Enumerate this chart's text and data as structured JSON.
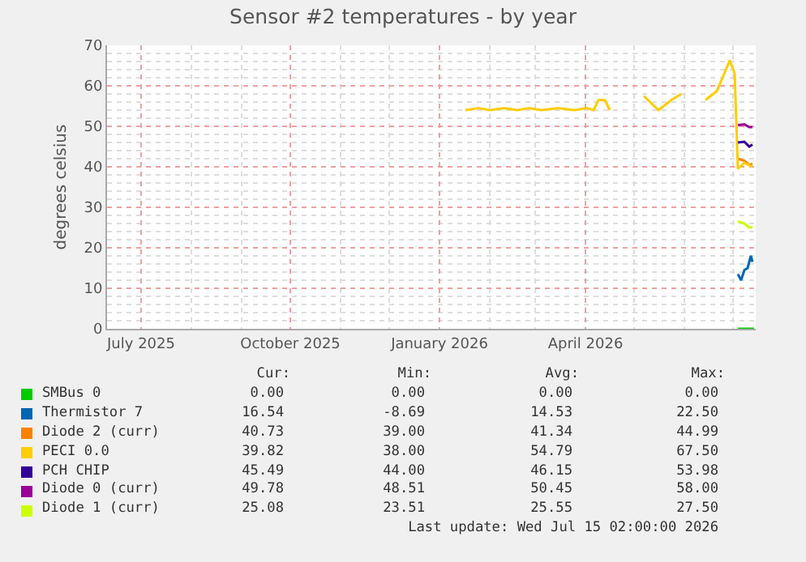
{
  "chart_data": {
    "type": "line",
    "title": "Sensor #2 temperatures - by year",
    "ylabel": "degrees celsius",
    "xlim": [
      "2025-06-10",
      "2026-07-15"
    ],
    "xticks": [
      {
        "value": "2025-07-01",
        "label": "July 2025"
      },
      {
        "value": "2025-10-01",
        "label": "October 2025"
      },
      {
        "value": "2026-01-01",
        "label": "January 2026"
      },
      {
        "value": "2026-04-01",
        "label": "April 2026"
      }
    ],
    "ylim": [
      0,
      70
    ],
    "yticks": [
      0,
      10,
      20,
      30,
      40,
      50,
      60,
      70
    ],
    "grid": true,
    "legend": "bottom",
    "series": [
      {
        "name": "SMBus 0",
        "color": "#00cc00",
        "x": [
          "2026-07-04",
          "2026-07-14"
        ],
        "values": [
          0,
          0
        ]
      },
      {
        "name": "Thermistor 7",
        "color": "#0066b3",
        "x": [
          "2026-07-04",
          "2026-07-06",
          "2026-07-08",
          "2026-07-10",
          "2026-07-12",
          "2026-07-13"
        ],
        "values": [
          13.5,
          12,
          14.5,
          15,
          18,
          16.5
        ]
      },
      {
        "name": "Diode 2 (curr)",
        "color": "#ff8000",
        "x": [
          "2026-07-04",
          "2026-07-08",
          "2026-07-11",
          "2026-07-13"
        ],
        "values": [
          42,
          41.5,
          40.5,
          40.7
        ]
      },
      {
        "name": "PECI 0.0",
        "color": "#ffcc00",
        "x": [
          "2026-01-17",
          "2026-01-25",
          "2026-02-01",
          "2026-02-10",
          "2026-02-18",
          "2026-02-25",
          "2026-03-05",
          "2026-03-15",
          "2026-03-25",
          "2026-04-02",
          "2026-04-06",
          "2026-04-09",
          "2026-04-13",
          "2026-04-16",
          "2026-04-25",
          "2026-05-07",
          "2026-05-16",
          "2026-05-24",
          "2026-05-30",
          "2026-06-05",
          "2026-06-14",
          "2026-06-21",
          "2026-06-29",
          "2026-07-02",
          "2026-07-04",
          "2026-07-08",
          "2026-07-13"
        ],
        "values": [
          54,
          54.5,
          54,
          54.5,
          54,
          54.5,
          54,
          54.5,
          54,
          54.5,
          54,
          56.5,
          56.5,
          54,
          null,
          57.5,
          54,
          56.5,
          58,
          null,
          56.5,
          58.7,
          66.3,
          63,
          39.5,
          41,
          40
        ]
      },
      {
        "name": "PCH CHIP",
        "color": "#330099",
        "x": [
          "2026-07-04",
          "2026-07-08",
          "2026-07-11",
          "2026-07-13"
        ],
        "values": [
          46,
          46.2,
          45,
          45.5
        ]
      },
      {
        "name": "Diode 0 (curr)",
        "color": "#990099",
        "x": [
          "2026-07-04",
          "2026-07-08",
          "2026-07-11",
          "2026-07-13"
        ],
        "values": [
          50.3,
          50.5,
          49.8,
          49.8
        ]
      },
      {
        "name": "Diode 1 (curr)",
        "color": "#ccff00",
        "x": [
          "2026-07-04",
          "2026-07-08",
          "2026-07-11",
          "2026-07-13"
        ],
        "values": [
          26.5,
          26,
          25,
          25.1
        ]
      }
    ],
    "annotations": [
      "Cur:",
      "Min:",
      "Avg:",
      "Max:",
      "0.00",
      "0.00",
      "0.00",
      "0.00",
      "16.54",
      "-8.69",
      "14.53",
      "22.50",
      "40.73",
      "39.00",
      "41.34",
      "44.99",
      "39.82",
      "38.00",
      "54.79",
      "67.50",
      "45.49",
      "44.00",
      "46.15",
      "53.98",
      "49.78",
      "48.51",
      "50.45",
      "58.00",
      "25.08",
      "23.51",
      "25.55",
      "27.50",
      "Last update: Wed Jul 15 02:00:00 2026"
    ]
  }
}
